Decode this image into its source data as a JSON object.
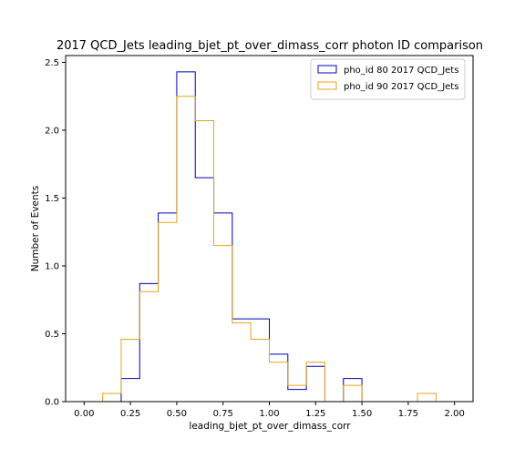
{
  "chart_data": {
    "type": "step-histogram",
    "title": "2017 QCD_Jets leading_bjet_pt_over_dimass_corr photon ID comparison",
    "xlabel": "leading_bjet_pt_over_dimass_corr",
    "ylabel": "Number of Events",
    "xlim": [
      -0.1,
      2.1
    ],
    "ylim": [
      0,
      2.55
    ],
    "x_ticks": [
      0.0,
      0.25,
      0.5,
      0.75,
      1.0,
      1.25,
      1.5,
      1.75,
      2.0
    ],
    "x_tick_labels": [
      "0.00",
      "0.25",
      "0.50",
      "0.75",
      "1.00",
      "1.25",
      "1.50",
      "1.75",
      "2.00"
    ],
    "y_ticks": [
      0.0,
      0.5,
      1.0,
      1.5,
      2.0,
      2.5
    ],
    "y_tick_labels": [
      "0.0",
      "0.5",
      "1.0",
      "1.5",
      "2.0",
      "2.5"
    ],
    "bin_edges": [
      0.0,
      0.1,
      0.2,
      0.3,
      0.4,
      0.5,
      0.6,
      0.7,
      0.8,
      0.9,
      1.0,
      1.1,
      1.2,
      1.3,
      1.4,
      1.5,
      1.6,
      1.7,
      1.8,
      1.9,
      2.0
    ],
    "grid": false,
    "legend_position": "top-right",
    "series": [
      {
        "name": "pho_id 80 2017 QCD_Jets",
        "color": "#0000bb",
        "values": [
          0,
          0,
          0.17,
          0.87,
          1.39,
          2.43,
          1.65,
          1.39,
          0.61,
          0.61,
          0.35,
          0.09,
          0.26,
          0,
          0.17,
          0,
          0,
          0,
          0,
          0
        ]
      },
      {
        "name": "pho_id 90 2017 QCD_Jets",
        "color": "#e8a317",
        "values": [
          0,
          0.06,
          0.46,
          0.81,
          1.32,
          2.25,
          2.07,
          1.15,
          0.58,
          0.46,
          0.29,
          0.12,
          0.29,
          0,
          0.12,
          0,
          0,
          0,
          0.06,
          0
        ]
      }
    ]
  }
}
